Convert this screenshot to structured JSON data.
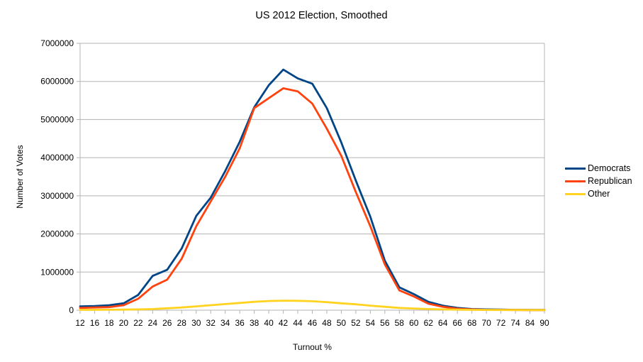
{
  "chart_data": {
    "type": "line",
    "title": "US 2012 Election, Smoothed",
    "xlabel": "Turnout %",
    "ylabel": "Number of Votes",
    "ylim": [
      0,
      7000000
    ],
    "y_tick_step": 1000000,
    "grid": true,
    "legend_position": "right",
    "background": "#ffffff",
    "grid_color": "#b3b3b3",
    "categories": [
      12,
      16,
      18,
      20,
      22,
      24,
      26,
      28,
      30,
      32,
      34,
      36,
      38,
      40,
      42,
      44,
      46,
      48,
      50,
      52,
      54,
      56,
      58,
      60,
      62,
      64,
      66,
      68,
      70,
      72,
      74,
      84,
      90
    ],
    "series": [
      {
        "name": "Democrats",
        "color": "#004586",
        "values": [
          100000,
          110000,
          130000,
          180000,
          400000,
          900000,
          1060000,
          1620000,
          2470000,
          2950000,
          3650000,
          4420000,
          5320000,
          5900000,
          6310000,
          6080000,
          5940000,
          5300000,
          4400000,
          3400000,
          2450000,
          1300000,
          600000,
          420000,
          220000,
          120000,
          60000,
          30000,
          20000,
          15000,
          10000,
          5000,
          5000
        ]
      },
      {
        "name": "Republican",
        "color": "#FF420E",
        "values": [
          60000,
          70000,
          80000,
          130000,
          300000,
          620000,
          800000,
          1350000,
          2200000,
          2850000,
          3500000,
          4250000,
          5300000,
          5560000,
          5820000,
          5740000,
          5420000,
          4760000,
          4050000,
          3100000,
          2200000,
          1200000,
          520000,
          360000,
          170000,
          90000,
          40000,
          20000,
          10000,
          8000,
          5000,
          3000,
          3000
        ]
      },
      {
        "name": "Other",
        "color": "#FFD320",
        "values": [
          10000,
          10000,
          12000,
          15000,
          20000,
          30000,
          50000,
          70000,
          100000,
          130000,
          160000,
          190000,
          220000,
          240000,
          250000,
          245000,
          235000,
          210000,
          180000,
          155000,
          120000,
          90000,
          60000,
          45000,
          30000,
          20000,
          15000,
          10000,
          8000,
          6000,
          5000,
          4000,
          3000
        ]
      }
    ]
  }
}
